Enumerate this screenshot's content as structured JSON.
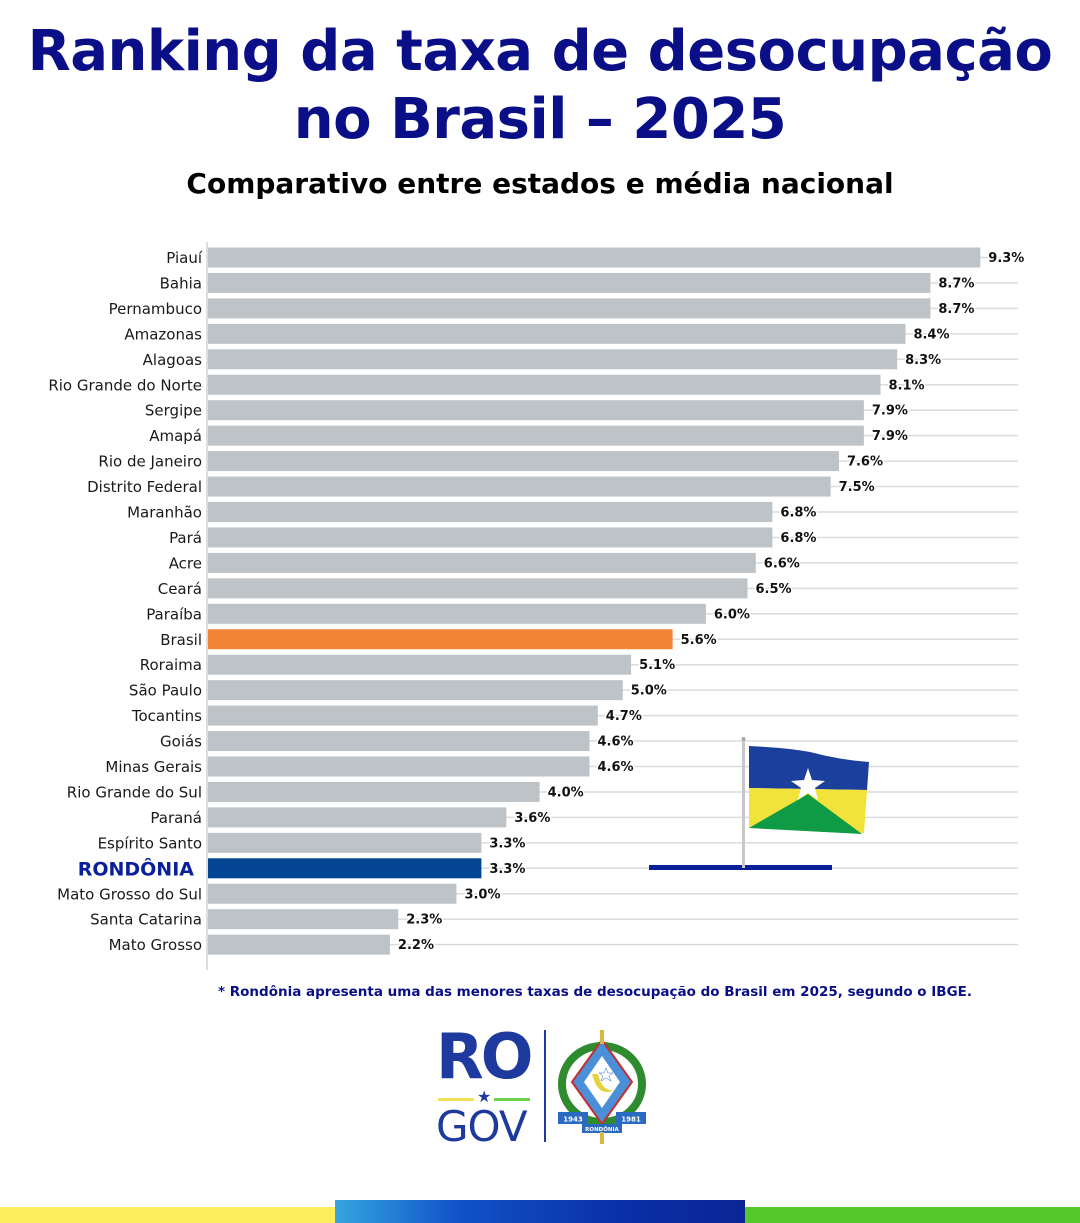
{
  "header": {
    "title_line1": "Ranking da taxa de desocupação",
    "title_line2": "no Brasil – 2025",
    "subtitle": "Comparativo entre estados e média nacional"
  },
  "chart_data": {
    "type": "bar",
    "orientation": "horizontal",
    "title": "Ranking da taxa de desocupação no Brasil – 2025",
    "subtitle": "Comparativo entre estados e média nacional",
    "xlabel": "",
    "ylabel": "",
    "unit": "%",
    "xlim": [
      0,
      9.3
    ],
    "grid": true,
    "categories": [
      "Piauí",
      "Bahia",
      "Pernambuco",
      "Amazonas",
      "Alagoas",
      "Rio Grande do Norte",
      "Sergipe",
      "Amapá",
      "Rio de Janeiro",
      "Distrito Federal",
      "Maranhão",
      "Pará",
      "Acre",
      "Ceará",
      "Paraíba",
      "Brasil",
      "Roraima",
      "São Paulo",
      "Tocantins",
      "Goiás",
      "Minas Gerais",
      "Rio Grande do Sul",
      "Paraná",
      "Espírito Santo",
      "RONDÔNIA",
      "Mato Grosso do Sul",
      "Santa Catarina",
      "Mato Grosso"
    ],
    "values": [
      9.3,
      8.7,
      8.7,
      8.4,
      8.3,
      8.1,
      7.9,
      7.9,
      7.6,
      7.5,
      6.8,
      6.8,
      6.6,
      6.5,
      6.0,
      5.6,
      5.1,
      5.0,
      4.7,
      4.6,
      4.6,
      4.0,
      3.6,
      3.3,
      3.3,
      3.0,
      2.3,
      2.2
    ],
    "value_labels": [
      "9.3%",
      "8.7%",
      "8.7%",
      "8.4%",
      "8.3%",
      "8.1%",
      "7.9%",
      "7.9%",
      "7.6%",
      "7.5%",
      "6.8%",
      "6.8%",
      "6.6%",
      "6.5%",
      "6.0%",
      "5.6%",
      "5.1%",
      "5.0%",
      "4.7%",
      "4.6%",
      "4.6%",
      "4.0%",
      "3.6%",
      "3.3%",
      "3.3%",
      "3.0%",
      "2.3%",
      "2.2%"
    ],
    "highlights": {
      "Brasil": {
        "role": "national-average",
        "color": "#f28535"
      },
      "RONDÔNIA": {
        "role": "featured-state",
        "color": "#034493"
      }
    },
    "default_bar_color": "#bec3c7"
  },
  "footnote": "* Rondônia apresenta uma das menores taxas de desocupação do Brasil em 2025, segundo o IBGE.",
  "logo": {
    "ro": "RO",
    "gov": "GOV",
    "crest_years": [
      "1943",
      "1981"
    ],
    "crest_name": "RONDÔNIA"
  },
  "colors": {
    "title": "#0a0f87",
    "bar_default": "#bec3c7",
    "bar_brasil": "#f28535",
    "bar_rondonia": "#034493",
    "stripe_yellow": "#fbee5a",
    "stripe_blue": "#0a2fa6",
    "stripe_green": "#52c82a"
  }
}
